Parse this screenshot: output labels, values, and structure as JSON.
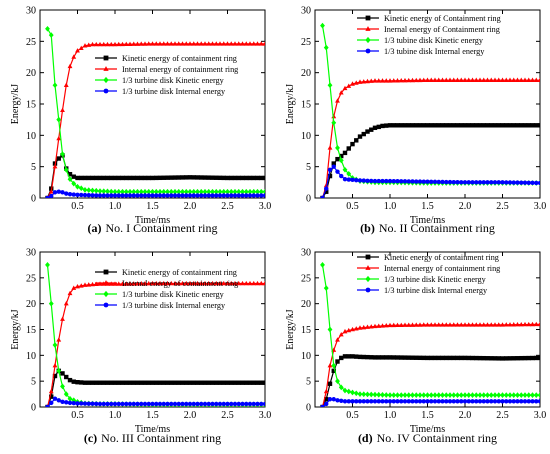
{
  "figure": {
    "colors": {
      "black": "#000000",
      "red": "#ff0000",
      "green": "#00ff00",
      "blue": "#0000ff"
    }
  },
  "chart_data": [
    {
      "type": "line",
      "panel_letter": "(a)",
      "caption": "No. I Containment ring",
      "xlabel": "Time/ms",
      "ylabel": "Energy/kJ",
      "xlim": [
        0,
        3.0
      ],
      "ylim": [
        0,
        30
      ],
      "xticks": [
        "0.5",
        "1.0",
        "1.5",
        "2.0",
        "2.5",
        "3.0"
      ],
      "yticks": [
        "0",
        "5",
        "10",
        "15",
        "20",
        "25",
        "30"
      ],
      "legend_position": "center-right",
      "series": [
        {
          "name": "Kinetic energy of containment ring",
          "color": "#000000",
          "marker": "square",
          "x": [
            0.1,
            0.15,
            0.2,
            0.25,
            0.3,
            0.35,
            0.4,
            0.45,
            0.5,
            0.6,
            0.8,
            1.0,
            1.5,
            2.0,
            2.5,
            3.0
          ],
          "y": [
            0,
            1.5,
            5.5,
            6.3,
            6.8,
            4.7,
            3.8,
            3.4,
            3.2,
            3.2,
            3.2,
            3.2,
            3.2,
            3.3,
            3.2,
            3.2
          ]
        },
        {
          "name": "Internal energy of containment ring",
          "color": "#ff0000",
          "marker": "triangle",
          "x": [
            0.1,
            0.15,
            0.2,
            0.25,
            0.3,
            0.35,
            0.4,
            0.45,
            0.5,
            0.6,
            0.7,
            0.8,
            1.0,
            1.5,
            2.0,
            2.5,
            3.0
          ],
          "y": [
            0,
            1,
            5,
            9.5,
            14,
            18,
            21,
            22.5,
            23.5,
            24.3,
            24.5,
            24.5,
            24.5,
            24.6,
            24.6,
            24.6,
            24.6
          ]
        },
        {
          "name": "1/3 turbine disk Kinetic energy",
          "color": "#00ff00",
          "marker": "diamond",
          "x": [
            0.1,
            0.15,
            0.2,
            0.25,
            0.3,
            0.35,
            0.4,
            0.45,
            0.5,
            0.6,
            0.8,
            1.0,
            1.5,
            2.0,
            2.5,
            3.0
          ],
          "y": [
            27,
            26,
            18,
            12.5,
            7,
            4.5,
            3,
            2.3,
            1.8,
            1.3,
            1.1,
            1.0,
            1.0,
            1.0,
            1.0,
            1.0
          ]
        },
        {
          "name": "1/3 turbine disk Internal energy",
          "color": "#0000ff",
          "marker": "circle",
          "x": [
            0.1,
            0.15,
            0.2,
            0.25,
            0.3,
            0.35,
            0.4,
            0.5,
            0.8,
            1.0,
            1.5,
            2.0,
            2.5,
            3.0
          ],
          "y": [
            0,
            0.3,
            0.9,
            1.0,
            0.9,
            0.7,
            0.6,
            0.5,
            0.4,
            0.4,
            0.4,
            0.4,
            0.4,
            0.4
          ]
        }
      ]
    },
    {
      "type": "line",
      "panel_letter": "(b)",
      "caption": "No. II Containment ring",
      "xlabel": "Time/ms",
      "ylabel": "Energy/kJ",
      "xlim": [
        0,
        3.0
      ],
      "ylim": [
        0,
        30
      ],
      "xticks": [
        "0.5",
        "1.0",
        "1.5",
        "2.0",
        "2.5",
        "3.0"
      ],
      "yticks": [
        "0",
        "5",
        "10",
        "15",
        "20",
        "25",
        "30"
      ],
      "legend_position": "top-right",
      "series": [
        {
          "name": "Kinetic energy of Containment ring",
          "color": "#000000",
          "marker": "square",
          "x": [
            0.1,
            0.15,
            0.2,
            0.25,
            0.3,
            0.4,
            0.5,
            0.6,
            0.7,
            0.8,
            0.9,
            1.0,
            1.5,
            2.0,
            2.5,
            3.0
          ],
          "y": [
            0,
            1,
            3.5,
            5.5,
            6.2,
            7.2,
            8.6,
            9.8,
            10.6,
            11.2,
            11.5,
            11.6,
            11.6,
            11.6,
            11.6,
            11.6
          ]
        },
        {
          "name": "Inernal energy of Containment ring",
          "color": "#ff0000",
          "marker": "triangle",
          "x": [
            0.1,
            0.15,
            0.2,
            0.25,
            0.3,
            0.35,
            0.4,
            0.5,
            0.6,
            0.7,
            0.8,
            1.0,
            1.5,
            2.0,
            2.5,
            3.0
          ],
          "y": [
            0,
            2,
            8,
            13,
            15.5,
            16.8,
            17.5,
            18.2,
            18.5,
            18.6,
            18.7,
            18.7,
            18.8,
            18.8,
            18.8,
            18.8
          ]
        },
        {
          "name": "1/3 tubine disk Kinetic energy",
          "color": "#00ff00",
          "marker": "diamond",
          "x": [
            0.1,
            0.15,
            0.2,
            0.25,
            0.3,
            0.35,
            0.4,
            0.5,
            0.6,
            0.8,
            1.0,
            1.5,
            2.0,
            2.5,
            3.0
          ],
          "y": [
            27.5,
            24,
            18,
            12,
            8,
            6,
            4.5,
            3.2,
            2.7,
            2.5,
            2.5,
            2.4,
            2.4,
            2.4,
            2.4
          ]
        },
        {
          "name": "1/3 tubine disk Internal energy",
          "color": "#0000ff",
          "marker": "circle",
          "x": [
            0.1,
            0.15,
            0.2,
            0.25,
            0.3,
            0.35,
            0.4,
            0.5,
            0.6,
            0.8,
            1.0,
            1.5,
            2.0,
            2.5,
            3.0
          ],
          "y": [
            0,
            1.5,
            4.5,
            5.0,
            4.2,
            3.5,
            3.0,
            2.9,
            2.8,
            2.7,
            2.7,
            2.6,
            2.5,
            2.5,
            2.4
          ]
        }
      ]
    },
    {
      "type": "line",
      "panel_letter": "(c)",
      "caption": "No. III Containment ring",
      "xlabel": "Time/ms",
      "ylabel": "Energy/kJ",
      "xlim": [
        0,
        3.0
      ],
      "ylim": [
        0,
        30
      ],
      "xticks": [
        "0.5",
        "1.0",
        "1.5",
        "2.0",
        "2.5",
        "3.0"
      ],
      "yticks": [
        "0",
        "5",
        "10",
        "15",
        "20",
        "25",
        "30"
      ],
      "legend_position": "center-right",
      "series": [
        {
          "name": "Kinetic energy of containment ring",
          "color": "#000000",
          "marker": "square",
          "x": [
            0.1,
            0.15,
            0.2,
            0.25,
            0.3,
            0.35,
            0.4,
            0.45,
            0.5,
            0.6,
            0.8,
            1.0,
            1.5,
            2.0,
            2.5,
            3.0
          ],
          "y": [
            0,
            2,
            6,
            7,
            6.5,
            5.8,
            5.2,
            4.9,
            4.8,
            4.7,
            4.7,
            4.7,
            4.7,
            4.7,
            4.7,
            4.7
          ]
        },
        {
          "name": "Internal energy of containment ring",
          "color": "#ff0000",
          "marker": "triangle",
          "x": [
            0.1,
            0.15,
            0.2,
            0.25,
            0.3,
            0.35,
            0.4,
            0.45,
            0.5,
            0.6,
            0.8,
            1.0,
            1.5,
            2.0,
            2.5,
            3.0
          ],
          "y": [
            0,
            3,
            8,
            13,
            17,
            20,
            22,
            23,
            23.3,
            23.6,
            23.8,
            23.8,
            23.9,
            23.9,
            23.9,
            23.9
          ]
        },
        {
          "name": "1/3 turbine disk Kinetic energy",
          "color": "#00ff00",
          "marker": "diamond",
          "x": [
            0.1,
            0.15,
            0.2,
            0.25,
            0.3,
            0.35,
            0.4,
            0.5,
            0.6,
            0.8,
            1.0,
            1.5,
            2.0,
            2.5,
            3.0
          ],
          "y": [
            27.5,
            20,
            12,
            7,
            4,
            2.5,
            1.6,
            1.0,
            0.7,
            0.6,
            0.6,
            0.5,
            0.5,
            0.5,
            0.5
          ]
        },
        {
          "name": "1/3 turbine disk Internal energy",
          "color": "#0000ff",
          "marker": "circle",
          "x": [
            0.1,
            0.15,
            0.2,
            0.25,
            0.3,
            0.4,
            0.5,
            0.8,
            1.0,
            1.5,
            2.0,
            2.5,
            3.0
          ],
          "y": [
            0,
            0.8,
            1.6,
            1.3,
            1.0,
            0.8,
            0.7,
            0.6,
            0.6,
            0.6,
            0.6,
            0.6,
            0.6
          ]
        }
      ]
    },
    {
      "type": "line",
      "panel_letter": "(d)",
      "caption": "No. IV Containment ring",
      "xlabel": "Time/ms",
      "ylabel": "Energy/kJ",
      "xlim": [
        0,
        3.0
      ],
      "ylim": [
        0,
        30
      ],
      "xticks": [
        "0.5",
        "1.0",
        "1.5",
        "2.0",
        "2.5",
        "3.0"
      ],
      "yticks": [
        "0",
        "5",
        "10",
        "15",
        "20",
        "25",
        "30"
      ],
      "legend_position": "top-right",
      "series": [
        {
          "name": "Kinetic energy of containment ring",
          "color": "#000000",
          "marker": "square",
          "x": [
            0.1,
            0.15,
            0.2,
            0.25,
            0.3,
            0.35,
            0.4,
            0.5,
            0.6,
            0.8,
            1.0,
            1.5,
            2.0,
            2.5,
            3.0
          ],
          "y": [
            0,
            1.5,
            4.5,
            7,
            8.8,
            9.5,
            9.8,
            9.8,
            9.7,
            9.6,
            9.6,
            9.5,
            9.5,
            9.4,
            9.5
          ]
        },
        {
          "name": "Internal energy of containment ring",
          "color": "#ff0000",
          "marker": "triangle",
          "x": [
            0.1,
            0.15,
            0.2,
            0.25,
            0.3,
            0.35,
            0.4,
            0.5,
            0.6,
            0.8,
            1.0,
            1.5,
            2.0,
            2.5,
            3.0
          ],
          "y": [
            0,
            3,
            8,
            11,
            13,
            14,
            14.6,
            15.0,
            15.3,
            15.6,
            15.8,
            15.9,
            15.9,
            15.9,
            16.0
          ]
        },
        {
          "name": "1/3 turbine disk Kinetic energy",
          "color": "#00ff00",
          "marker": "diamond",
          "x": [
            0.1,
            0.15,
            0.2,
            0.25,
            0.3,
            0.35,
            0.4,
            0.5,
            0.6,
            0.8,
            1.0,
            1.5,
            2.0,
            2.5,
            3.0
          ],
          "y": [
            27.5,
            23,
            15,
            8,
            5,
            3.8,
            3.2,
            2.8,
            2.5,
            2.4,
            2.3,
            2.3,
            2.3,
            2.3,
            2.3
          ]
        },
        {
          "name": "1/3 turbine disk Internal energy",
          "color": "#0000ff",
          "marker": "circle",
          "x": [
            0.1,
            0.15,
            0.2,
            0.25,
            0.3,
            0.35,
            0.4,
            0.5,
            0.8,
            1.0,
            1.5,
            2.0,
            2.5,
            3.0
          ],
          "y": [
            0,
            0.6,
            1.5,
            1.5,
            1.3,
            1.2,
            1.1,
            1.1,
            1.1,
            1.1,
            1.1,
            1.1,
            1.1,
            1.1
          ]
        }
      ]
    }
  ]
}
